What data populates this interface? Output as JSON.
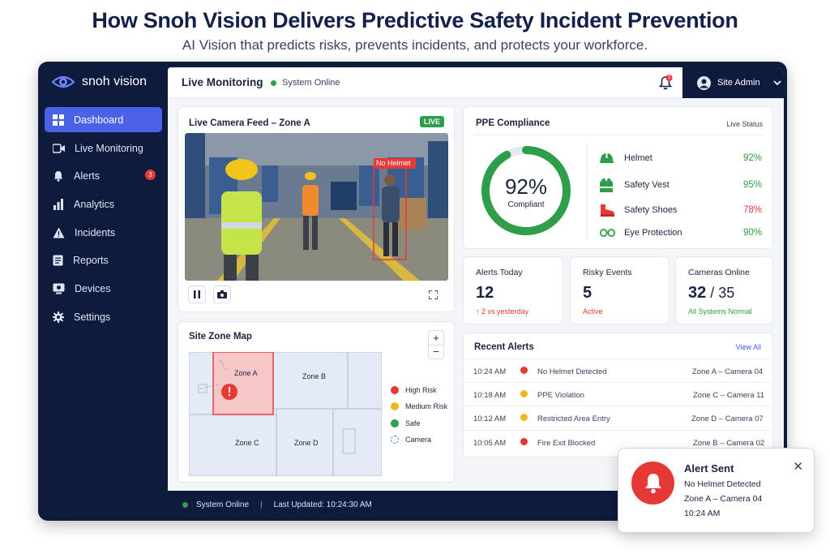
{
  "headline": "How Snoh Vision Delivers Predictive Safety Incident Prevention",
  "subline": "AI Vision that predicts risks, prevents incidents, and protects your workforce.",
  "app": {
    "name": "snoh vision"
  },
  "sidebar": {
    "items": [
      {
        "label": "Dashboard",
        "icon": "dashboard-icon",
        "active": true
      },
      {
        "label": "Live Monitoring",
        "icon": "video-camera-icon"
      },
      {
        "label": "Alerts",
        "icon": "bell-icon",
        "badge": "3"
      },
      {
        "label": "Analytics",
        "icon": "bar-chart-icon"
      },
      {
        "label": "Incidents",
        "icon": "warning-triangle-icon"
      },
      {
        "label": "Reports",
        "icon": "document-icon"
      },
      {
        "label": "Devices",
        "icon": "device-icon"
      },
      {
        "label": "Settings",
        "icon": "gear-icon"
      }
    ]
  },
  "topbar": {
    "title": "Live Monitoring",
    "status": "System Online",
    "notification_count": "3",
    "user": "Site Admin"
  },
  "camera": {
    "title": "Live Camera Feed – Zone A",
    "live_label": "LIVE",
    "detection_label": "No Helmet"
  },
  "ppe": {
    "title": "PPE Compliance",
    "status": "Live Status",
    "overall": "92%",
    "overall_fraction": 0.92,
    "overall_label": "Compliant",
    "items": [
      {
        "label": "Helmet",
        "value": "92%",
        "icon": "helmet-icon",
        "color": "#2e9e4a"
      },
      {
        "label": "Safety Vest",
        "value": "95%",
        "icon": "vest-icon",
        "color": "#2e9e4a"
      },
      {
        "label": "Safety Shoes",
        "value": "78%",
        "icon": "shoe-icon",
        "color": "#e53935"
      },
      {
        "label": "Eye Protection",
        "value": "90%",
        "icon": "goggles-icon",
        "color": "#2e9e4a"
      }
    ]
  },
  "stats": [
    {
      "label": "Alerts Today",
      "value": "12",
      "sub": "↑ 2 vs yesterday",
      "sub_color": "#e53935"
    },
    {
      "label": "Risky Events",
      "value": "5",
      "sub": "Active",
      "sub_color": "#e53935"
    },
    {
      "label": "Cameras Online",
      "value": "32",
      "value_suffix": " / 35",
      "sub": "All Systems Normal",
      "sub_color": "#2e9e4a"
    }
  ],
  "map": {
    "title": "Site Zone Map",
    "zones": [
      "Zone A",
      "Zone B",
      "Zone C",
      "Zone D"
    ],
    "legend": [
      {
        "label": "High Risk",
        "color": "#e53935"
      },
      {
        "label": "Medium Risk",
        "color": "#f2b61c"
      },
      {
        "label": "Safe",
        "color": "#2e9e4a"
      },
      {
        "label": "Camera",
        "color": "#3a7bd5"
      }
    ]
  },
  "recent_alerts": {
    "title": "Recent Alerts",
    "view_all": "View All",
    "rows": [
      {
        "time": "10:24 AM",
        "event": "No Helmet Detected",
        "location": "Zone A – Camera 04",
        "color": "#e53935"
      },
      {
        "time": "10:18 AM",
        "event": "PPE Violation",
        "location": "Zone C – Camera 11",
        "color": "#f2b61c"
      },
      {
        "time": "10:12 AM",
        "event": "Restricted Area Entry",
        "location": "Zone D – Camera 07",
        "color": "#f2b61c"
      },
      {
        "time": "10:05 AM",
        "event": "Fire Exit Blocked",
        "location": "Zone B – Camera 02",
        "color": "#e53935"
      }
    ]
  },
  "footer": {
    "status": "System Online",
    "divider": "|",
    "last_updated": "Last Updated: 10:24:30 AM"
  },
  "toast": {
    "title": "Alert Sent",
    "line1": "No Helmet Detected",
    "line2": "Zone A – Camera 04",
    "line3": "10:24 AM"
  }
}
